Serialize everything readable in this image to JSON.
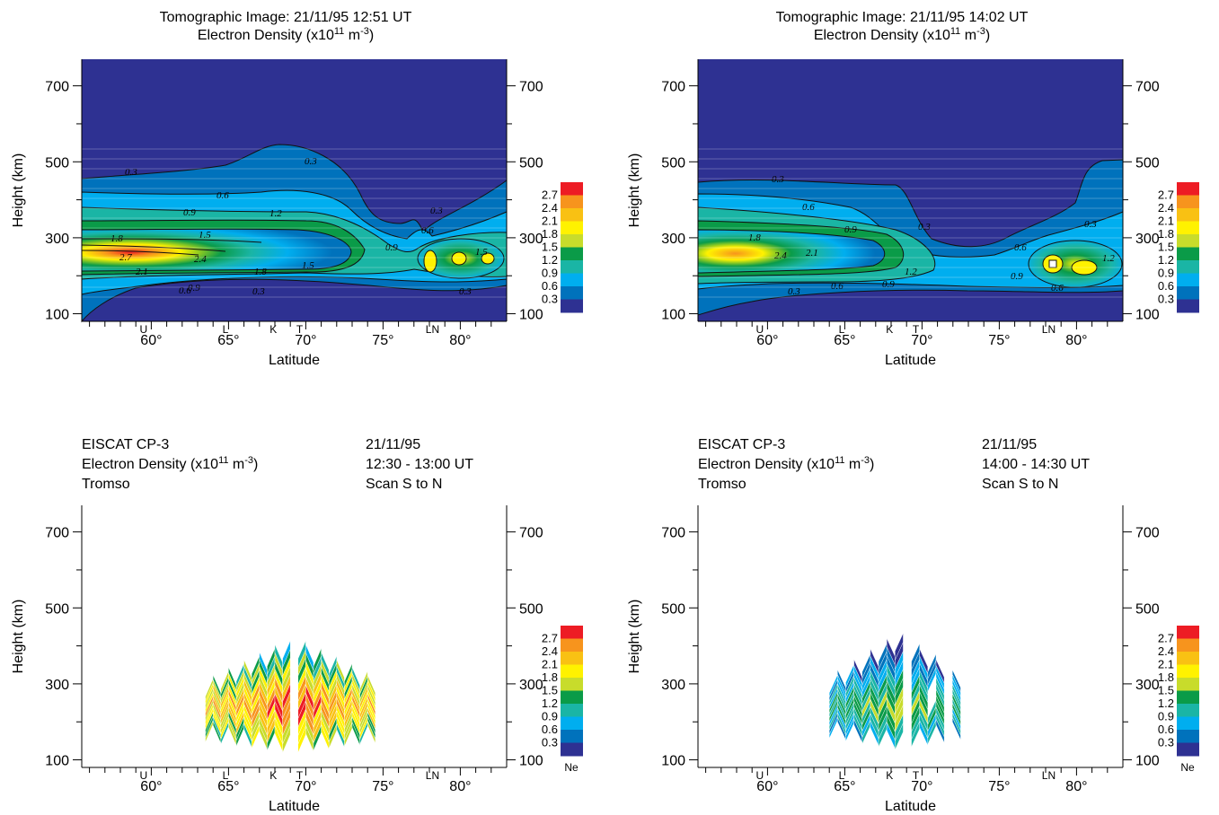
{
  "colorbar": {
    "ticks": [
      "2.7",
      "2.4",
      "2.1",
      "1.8",
      "1.5",
      "1.2",
      "0.9",
      "0.6",
      "0.3"
    ],
    "colors": [
      "#ed1c24",
      "#f7941d",
      "#f9c113",
      "#fff200",
      "#c8dc2b",
      "#0a9b48",
      "#1ab5a5",
      "#00aeef",
      "#0072bc",
      "#2e3192"
    ],
    "ne_label": "Ne"
  },
  "chart_data": [
    {
      "type": "heatmap",
      "title": "Tomographic Image: 21/11/95 12:51 UT",
      "subtitle_pre": "Electron Density (x10",
      "subtitle_exp": "11",
      "subtitle_mid": " m",
      "subtitle_exp2": "-3",
      "subtitle_post": ")",
      "xlabel": "Latitude",
      "ylabel": "Height (km)",
      "xlim": [
        55.5,
        83
      ],
      "ylim": [
        80,
        770
      ],
      "x_ticks": [
        "60°",
        "65°",
        "70°",
        "75°",
        "80°"
      ],
      "y_ticks": [
        "100",
        "300",
        "500",
        "700"
      ],
      "stations": [
        "U",
        "L",
        "K",
        "T",
        "LN"
      ],
      "contour_levels": [
        0.3,
        0.6,
        0.9,
        1.2,
        1.5,
        1.8,
        2.1,
        2.4,
        2.7
      ],
      "peak": {
        "latitude": 58,
        "height_km": 245,
        "density": 2.9
      }
    },
    {
      "type": "heatmap",
      "title": "Tomographic Image: 21/11/95 14:02 UT",
      "subtitle_pre": "Electron Density (x10",
      "subtitle_exp": "11",
      "subtitle_mid": " m",
      "subtitle_exp2": "-3",
      "subtitle_post": ")",
      "xlabel": "Latitude",
      "ylabel": "Height (km)",
      "xlim": [
        55.5,
        83
      ],
      "ylim": [
        80,
        770
      ],
      "x_ticks": [
        "60°",
        "65°",
        "70°",
        "75°",
        "80°"
      ],
      "y_ticks": [
        "100",
        "300",
        "500",
        "700"
      ],
      "stations": [
        "U",
        "L",
        "K",
        "T",
        "LN"
      ],
      "contour_levels": [
        0.3,
        0.6,
        0.9,
        1.2,
        1.5,
        1.8,
        2.1,
        2.4
      ],
      "peak": {
        "latitude": 60,
        "height_km": 250,
        "density": 2.5
      }
    },
    {
      "type": "heatmap",
      "header_left": [
        "EISCAT CP-3",
        "Electron Density (x10",
        "Tromso"
      ],
      "header_exp": "11",
      "header_mid": " m",
      "header_exp2": "-3",
      "header_post": ")",
      "header_right": [
        "21/11/95",
        "12:30 - 13:00 UT",
        "Scan S to N"
      ],
      "xlabel": "Latitude",
      "ylabel": "Height (km)",
      "xlim": [
        55.5,
        83
      ],
      "ylim": [
        80,
        770
      ],
      "x_ticks": [
        "60°",
        "65°",
        "70°",
        "75°",
        "80°"
      ],
      "y_ticks": [
        "100",
        "300",
        "500",
        "700"
      ],
      "stations": [
        "U",
        "L",
        "K",
        "T",
        "LN"
      ],
      "scan_latitude_range": [
        63.5,
        74.5
      ]
    },
    {
      "type": "heatmap",
      "header_left": [
        "EISCAT CP-3",
        "Electron Density (x10",
        "Tromso"
      ],
      "header_exp": "11",
      "header_mid": " m",
      "header_exp2": "-3",
      "header_post": ")",
      "header_right": [
        "21/11/95",
        "14:00 - 14:30 UT",
        "Scan S to N"
      ],
      "xlabel": "Latitude",
      "ylabel": "Height (km)",
      "xlim": [
        55.5,
        83
      ],
      "ylim": [
        80,
        770
      ],
      "x_ticks": [
        "60°",
        "65°",
        "70°",
        "75°",
        "80°"
      ],
      "y_ticks": [
        "100",
        "300",
        "500",
        "700"
      ],
      "stations": [
        "U",
        "L",
        "K",
        "T",
        "LN"
      ],
      "scan_latitude_range": [
        64,
        72.5
      ]
    }
  ]
}
